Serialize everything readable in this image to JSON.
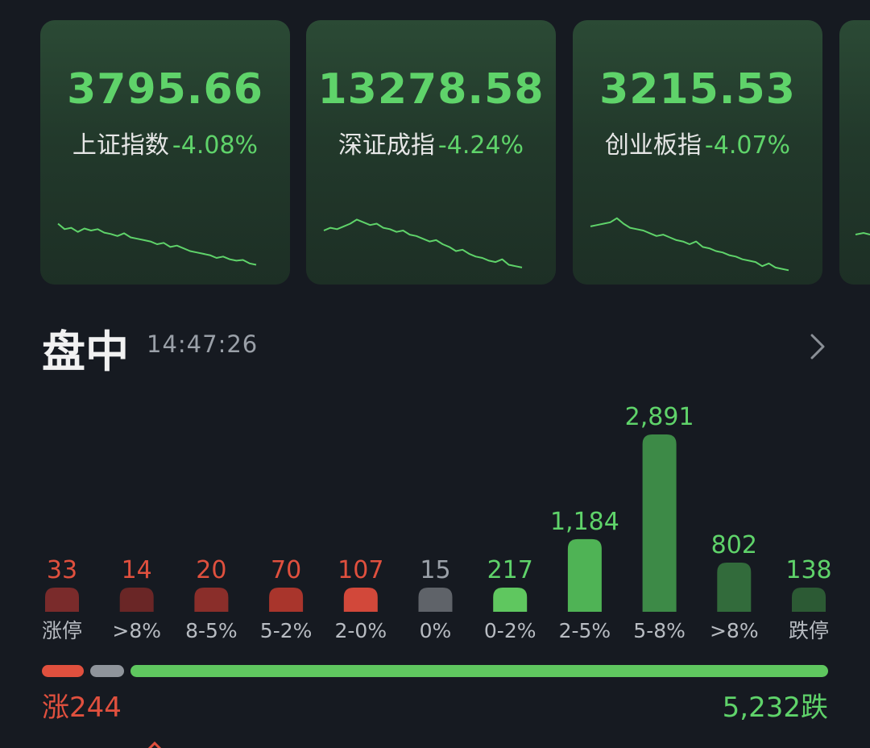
{
  "indices": [
    {
      "value": "3795.66",
      "name": "上证指数",
      "change": "-4.08%",
      "spark": [
        70,
        62,
        64,
        58,
        63,
        60,
        62,
        57,
        55,
        52,
        56,
        50,
        48,
        46,
        44,
        40,
        42,
        36,
        38,
        34,
        30,
        28,
        26,
        24,
        20,
        22,
        18,
        16,
        17,
        12,
        10
      ]
    },
    {
      "value": "13278.58",
      "name": "深证成指",
      "change": "-4.24%",
      "spark": [
        60,
        64,
        62,
        66,
        70,
        76,
        72,
        68,
        70,
        64,
        62,
        58,
        60,
        54,
        52,
        48,
        44,
        46,
        40,
        36,
        30,
        32,
        26,
        22,
        20,
        16,
        14,
        18,
        10,
        8,
        6
      ]
    },
    {
      "value": "3215.53",
      "name": "创业板指",
      "change": "-4.07%",
      "spark": [
        66,
        68,
        70,
        72,
        78,
        70,
        64,
        62,
        60,
        56,
        52,
        54,
        50,
        46,
        44,
        40,
        44,
        36,
        34,
        30,
        28,
        24,
        22,
        18,
        16,
        14,
        8,
        12,
        6,
        4,
        2
      ]
    }
  ],
  "section": {
    "title": "盘中",
    "time": "14:47:26"
  },
  "chart_data": {
    "type": "bar",
    "categories": [
      "涨停",
      ">8%",
      "8-5%",
      "5-2%",
      "2-0%",
      "0%",
      "0-2%",
      "2-5%",
      "5-8%",
      ">8%",
      "跌停"
    ],
    "values": [
      33,
      14,
      20,
      70,
      107,
      15,
      217,
      1184,
      2891,
      802,
      138
    ],
    "value_labels": [
      "33",
      "14",
      "20",
      "70",
      "107",
      "15",
      "217",
      "1,184",
      "2,891",
      "802",
      "138"
    ],
    "colors": [
      "#7a2b2b",
      "#6a2626",
      "#8a2e2a",
      "#a9352c",
      "#d2483a",
      "#5f6369",
      "#5fc75f",
      "#4fb355",
      "#3d8a47",
      "#326b3b",
      "#2c5a34"
    ],
    "label_colors": [
      "#e0503e",
      "#e0503e",
      "#e0503e",
      "#e0503e",
      "#e0503e",
      "#9aa0a8",
      "#5fd36a",
      "#5fd36a",
      "#5fd36a",
      "#5fd36a",
      "#5fd36a"
    ]
  },
  "summary": {
    "up_label": "涨244",
    "down_label": "5,232跌",
    "up_count": 244,
    "flat_count": 15,
    "down_count": 5232,
    "up_color": "#e0503e",
    "flat_color": "#8f949b",
    "down_color": "#5fc75f"
  }
}
